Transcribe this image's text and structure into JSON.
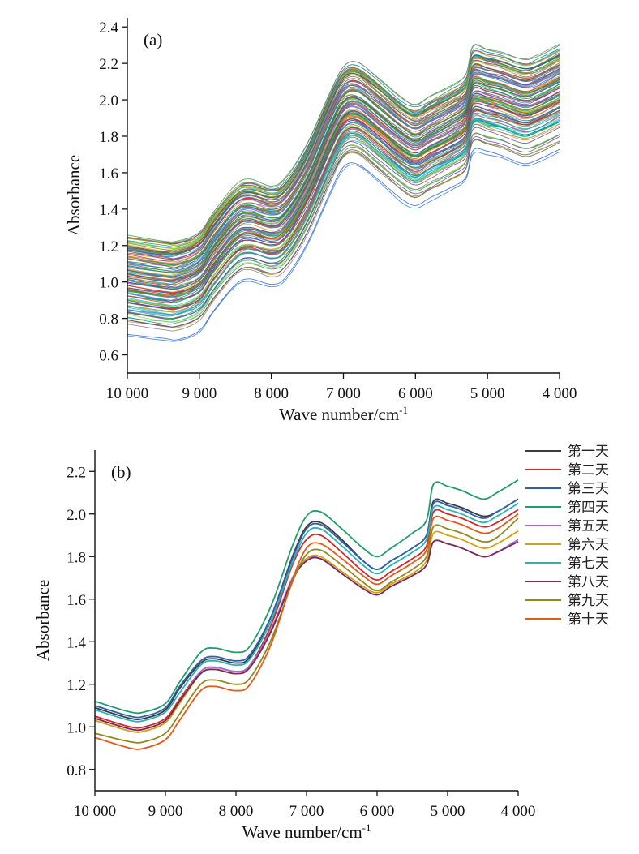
{
  "chart_data": [
    {
      "type": "line",
      "panel_label": "(a)",
      "xlabel": "Wave number/cm",
      "xlabel_sup": "-1",
      "ylabel": "Absorbance",
      "xlim": [
        10000,
        4000
      ],
      "ylim": [
        0.5,
        2.45
      ],
      "x_reversed": true,
      "x_ticks": [
        10000,
        9000,
        8000,
        7000,
        6000,
        5000,
        4000
      ],
      "x_tick_labels": [
        "10 000",
        "9 000",
        "8 000",
        "7 000",
        "6 000",
        "5 000",
        "4 000"
      ],
      "y_ticks": [
        0.6,
        0.8,
        1.0,
        1.2,
        1.4,
        1.6,
        1.8,
        2.0,
        2.2,
        2.4
      ],
      "y_tick_labels": [
        "0.6",
        "0.8",
        "1.0",
        "1.2",
        "1.4",
        "1.6",
        "1.8",
        "2.0",
        "2.2",
        "2.4"
      ],
      "base_profile": {
        "x": [
          10000,
          9500,
          9300,
          9000,
          8800,
          8500,
          8300,
          8000,
          7800,
          7500,
          7200,
          7000,
          6800,
          6500,
          6200,
          6000,
          5800,
          5500,
          5300,
          5200,
          5000,
          4800,
          4500,
          4300,
          4000
        ],
        "y": [
          1.05,
          1.02,
          1.02,
          1.07,
          1.18,
          1.32,
          1.35,
          1.32,
          1.36,
          1.55,
          1.82,
          1.97,
          1.99,
          1.9,
          1.8,
          1.76,
          1.8,
          1.86,
          1.92,
          2.07,
          2.06,
          2.04,
          2.0,
          2.02,
          2.08
        ]
      },
      "series_count": 120,
      "vertical_spread": [
        -0.32,
        0.21
      ],
      "palette": [
        "#2a7fd4",
        "#1f9e4a",
        "#d62728",
        "#c8a000",
        "#7f7f7f",
        "#17becf",
        "#6a3d9a",
        "#8c564b",
        "#2ca02c",
        "#e67e22",
        "#3a5fcd",
        "#9acd32",
        "#00838f",
        "#b03060",
        "#556b2f",
        "#4682b4"
      ]
    },
    {
      "type": "line",
      "panel_label": "(b)",
      "xlabel": "Wave number/cm",
      "xlabel_sup": "-1",
      "ylabel": "Absorbance",
      "xlim": [
        10000,
        4000
      ],
      "ylim": [
        0.7,
        2.3
      ],
      "x_reversed": true,
      "x_ticks": [
        10000,
        9000,
        8000,
        7000,
        6000,
        5000,
        4000
      ],
      "x_tick_labels": [
        "10 000",
        "9 000",
        "8 000",
        "7 000",
        "6 000",
        "5 000",
        "4 000"
      ],
      "y_ticks": [
        0.8,
        1.0,
        1.2,
        1.4,
        1.6,
        1.8,
        2.0,
        2.2
      ],
      "y_tick_labels": [
        "0.8",
        "1.0",
        "1.2",
        "1.4",
        "1.6",
        "1.8",
        "2.0",
        "2.2"
      ],
      "x": [
        10000,
        9500,
        9300,
        9000,
        8800,
        8500,
        8300,
        8000,
        7800,
        7500,
        7200,
        7000,
        6800,
        6500,
        6200,
        6000,
        5800,
        5500,
        5300,
        5200,
        5000,
        4800,
        4500,
        4300,
        4000
      ],
      "series": [
        {
          "name": "第一天",
          "color": "#3c3c3c",
          "values": [
            1.09,
            1.04,
            1.04,
            1.08,
            1.18,
            1.3,
            1.32,
            1.3,
            1.33,
            1.52,
            1.8,
            1.94,
            1.96,
            1.88,
            1.78,
            1.74,
            1.78,
            1.84,
            1.9,
            2.06,
            2.05,
            2.03,
            1.99,
            2.01,
            2.07
          ]
        },
        {
          "name": "第二天",
          "color": "#d62728",
          "values": [
            1.05,
            1.0,
            1.0,
            1.04,
            1.13,
            1.26,
            1.28,
            1.26,
            1.29,
            1.48,
            1.76,
            1.88,
            1.9,
            1.82,
            1.73,
            1.69,
            1.73,
            1.79,
            1.85,
            2.01,
            2.0,
            1.98,
            1.94,
            1.96,
            2.02
          ]
        },
        {
          "name": "第三天",
          "color": "#2f5fad",
          "values": [
            1.1,
            1.05,
            1.05,
            1.09,
            1.19,
            1.31,
            1.33,
            1.31,
            1.34,
            1.52,
            1.79,
            1.93,
            1.95,
            1.87,
            1.78,
            1.74,
            1.78,
            1.84,
            1.9,
            2.05,
            2.04,
            2.02,
            1.98,
            2.01,
            2.07
          ]
        },
        {
          "name": "第四天",
          "color": "#1f9e6a",
          "values": [
            1.12,
            1.07,
            1.07,
            1.11,
            1.21,
            1.35,
            1.37,
            1.35,
            1.38,
            1.57,
            1.85,
            1.99,
            2.01,
            1.93,
            1.84,
            1.8,
            1.84,
            1.91,
            1.97,
            2.14,
            2.13,
            2.11,
            2.07,
            2.1,
            2.16
          ]
        },
        {
          "name": "第五天",
          "color": "#9b6fd0",
          "values": [
            1.04,
            0.99,
            0.99,
            1.03,
            1.12,
            1.26,
            1.28,
            1.26,
            1.29,
            1.46,
            1.7,
            1.79,
            1.79,
            1.72,
            1.65,
            1.62,
            1.66,
            1.71,
            1.76,
            1.87,
            1.86,
            1.84,
            1.8,
            1.82,
            1.88
          ]
        },
        {
          "name": "第六天",
          "color": "#d4a017",
          "values": [
            1.03,
            0.98,
            0.98,
            1.02,
            1.11,
            1.25,
            1.27,
            1.25,
            1.28,
            1.45,
            1.69,
            1.79,
            1.8,
            1.73,
            1.66,
            1.63,
            1.67,
            1.72,
            1.78,
            1.91,
            1.9,
            1.88,
            1.84,
            1.86,
            1.92
          ]
        },
        {
          "name": "第七天",
          "color": "#26b5b5",
          "values": [
            1.08,
            1.03,
            1.03,
            1.07,
            1.16,
            1.29,
            1.31,
            1.29,
            1.32,
            1.5,
            1.77,
            1.91,
            1.93,
            1.85,
            1.76,
            1.72,
            1.76,
            1.82,
            1.88,
            2.03,
            2.02,
            2.0,
            1.96,
            1.99,
            2.05
          ]
        },
        {
          "name": "第八天",
          "color": "#7a2b55",
          "values": [
            1.04,
            0.99,
            0.99,
            1.03,
            1.12,
            1.25,
            1.27,
            1.25,
            1.28,
            1.45,
            1.69,
            1.78,
            1.79,
            1.72,
            1.65,
            1.62,
            1.66,
            1.71,
            1.76,
            1.87,
            1.86,
            1.84,
            1.8,
            1.82,
            1.87
          ]
        },
        {
          "name": "第九天",
          "color": "#8f8a1e",
          "values": [
            0.97,
            0.93,
            0.93,
            0.97,
            1.06,
            1.2,
            1.22,
            1.2,
            1.23,
            1.41,
            1.68,
            1.81,
            1.83,
            1.76,
            1.68,
            1.64,
            1.68,
            1.74,
            1.8,
            1.94,
            1.93,
            1.91,
            1.87,
            1.89,
            1.98
          ]
        },
        {
          "name": "第十天",
          "color": "#e25a1c",
          "values": [
            0.95,
            0.9,
            0.9,
            0.94,
            1.03,
            1.17,
            1.19,
            1.17,
            1.2,
            1.39,
            1.69,
            1.84,
            1.86,
            1.79,
            1.71,
            1.67,
            1.71,
            1.77,
            1.83,
            1.98,
            1.97,
            1.95,
            1.91,
            1.93,
            2.0
          ]
        }
      ]
    }
  ]
}
